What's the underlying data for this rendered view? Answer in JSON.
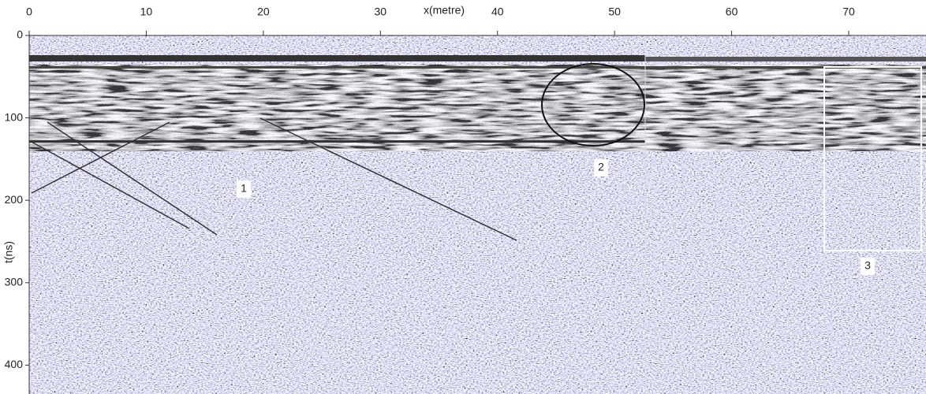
{
  "chart_data": {
    "type": "radargram",
    "xlabel": "x(metre)",
    "ylabel": "t(ns)",
    "xlim": [
      0,
      76.6
    ],
    "xticks": [
      0,
      10,
      20,
      30,
      40,
      50,
      60,
      70
    ],
    "ylim": [
      0,
      435
    ],
    "yticks": [
      0,
      100,
      200,
      300,
      400
    ],
    "annotations": [
      "1",
      "2",
      "3"
    ]
  }
}
